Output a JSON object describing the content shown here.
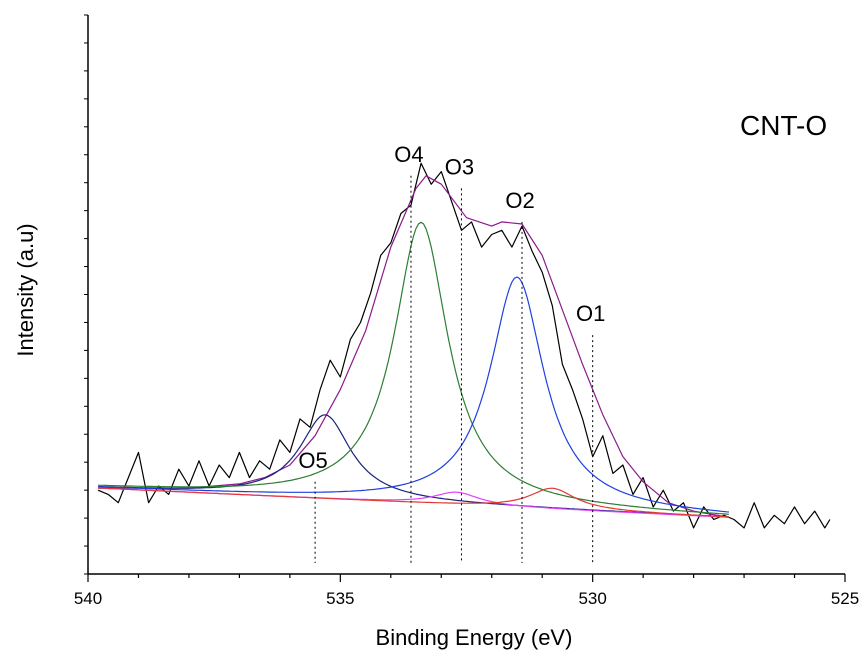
{
  "chart_data": {
    "type": "line",
    "title": "",
    "sample_label": "CNT-O",
    "xlabel": "Binding Energy (eV)",
    "ylabel": "Intensity (a.u)",
    "xlim": [
      540,
      525
    ],
    "x_reversed": true,
    "ylim": [
      0,
      100
    ],
    "y_tick_labels_shown": false,
    "grid": false,
    "legend": "none",
    "x_ticks": [
      540,
      535,
      530,
      525
    ],
    "x_tick_labels": [
      "540",
      "535",
      "530",
      "525"
    ],
    "peak_markers": [
      {
        "name": "O1",
        "x": 530.0,
        "top": 57
      },
      {
        "name": "O2",
        "x": 531.4,
        "top": 84
      },
      {
        "name": "O3",
        "x": 532.6,
        "top": 92
      },
      {
        "name": "O4",
        "x": 533.6,
        "top": 95
      },
      {
        "name": "O5",
        "x": 535.5,
        "top": 22
      }
    ],
    "baseline_start": [
      539.8,
      20.5
    ],
    "baseline_end": [
      527.3,
      13.5
    ],
    "series": [
      {
        "key": "raw",
        "color": "#000000",
        "points": [
          [
            539.8,
            20
          ],
          [
            539.6,
            19
          ],
          [
            539.4,
            17
          ],
          [
            539.3,
            20
          ],
          [
            539.0,
            29
          ],
          [
            538.8,
            17
          ],
          [
            538.6,
            21
          ],
          [
            538.4,
            19
          ],
          [
            538.2,
            25
          ],
          [
            538.0,
            21
          ],
          [
            537.8,
            27
          ],
          [
            537.6,
            21
          ],
          [
            537.4,
            26
          ],
          [
            537.2,
            23
          ],
          [
            537.0,
            29
          ],
          [
            536.8,
            23
          ],
          [
            536.6,
            27
          ],
          [
            536.4,
            25
          ],
          [
            536.2,
            32
          ],
          [
            536.0,
            29
          ],
          [
            535.8,
            37
          ],
          [
            535.6,
            35
          ],
          [
            535.4,
            44
          ],
          [
            535.2,
            51
          ],
          [
            535.0,
            47
          ],
          [
            534.8,
            56
          ],
          [
            534.6,
            60
          ],
          [
            534.4,
            67
          ],
          [
            534.2,
            76
          ],
          [
            534.0,
            79
          ],
          [
            533.8,
            86
          ],
          [
            533.6,
            88
          ],
          [
            533.4,
            98
          ],
          [
            533.2,
            93
          ],
          [
            533.0,
            96
          ],
          [
            532.8,
            89
          ],
          [
            532.6,
            82
          ],
          [
            532.4,
            84
          ],
          [
            532.2,
            78
          ],
          [
            532.0,
            81
          ],
          [
            531.8,
            82
          ],
          [
            531.6,
            78
          ],
          [
            531.4,
            83
          ],
          [
            531.2,
            77
          ],
          [
            531.0,
            72
          ],
          [
            530.8,
            64
          ],
          [
            530.6,
            50
          ],
          [
            530.4,
            44
          ],
          [
            530.2,
            37
          ],
          [
            530.0,
            28
          ],
          [
            529.8,
            33
          ],
          [
            529.6,
            24
          ],
          [
            529.4,
            26
          ],
          [
            529.2,
            19
          ],
          [
            529.0,
            23
          ],
          [
            528.8,
            16
          ],
          [
            528.6,
            20
          ],
          [
            528.4,
            15
          ],
          [
            528.2,
            17
          ],
          [
            528.0,
            11
          ],
          [
            527.8,
            16
          ],
          [
            527.6,
            13
          ],
          [
            527.4,
            14
          ],
          [
            527.2,
            13
          ],
          [
            527.0,
            11
          ],
          [
            526.8,
            17
          ],
          [
            526.6,
            11
          ],
          [
            526.4,
            14
          ],
          [
            526.2,
            12
          ],
          [
            526.0,
            16
          ],
          [
            525.8,
            12
          ],
          [
            525.6,
            15
          ],
          [
            525.4,
            11
          ],
          [
            525.3,
            13
          ]
        ]
      },
      {
        "key": "envelope",
        "color": "#8b1a8b",
        "points": [
          [
            539.8,
            20.5
          ],
          [
            538,
            20.5
          ],
          [
            537,
            21.5
          ],
          [
            536.5,
            23
          ],
          [
            536,
            26
          ],
          [
            535.5,
            33
          ],
          [
            535,
            44
          ],
          [
            534.5,
            58
          ],
          [
            534,
            78
          ],
          [
            533.5,
            92
          ],
          [
            533.3,
            95
          ],
          [
            533.0,
            93
          ],
          [
            532.5,
            85
          ],
          [
            532,
            83
          ],
          [
            531.8,
            84
          ],
          [
            531.4,
            83.5
          ],
          [
            531,
            76
          ],
          [
            530.6,
            63
          ],
          [
            530.2,
            50
          ],
          [
            529.8,
            38
          ],
          [
            529.4,
            28
          ],
          [
            529,
            22
          ],
          [
            528.5,
            17
          ],
          [
            528,
            15
          ],
          [
            527.3,
            13.5
          ]
        ]
      },
      {
        "key": "O5-fit",
        "color": "#1a237e",
        "center": 535.3,
        "width": 0.9,
        "height": 20
      },
      {
        "key": "O4-fit",
        "color": "#2e7d32",
        "center": 533.4,
        "width": 0.95,
        "height": 67
      },
      {
        "key": "O3-fit",
        "color": "#e040fb",
        "center": 532.7,
        "width": 0.8,
        "height": 3
      },
      {
        "key": "O2-fit",
        "color": "#1e40e0",
        "center": 531.5,
        "width": 0.95,
        "height": 55
      },
      {
        "key": "O1-fit",
        "color": "#e53935",
        "center": 530.8,
        "width": 0.8,
        "height": 5
      }
    ]
  }
}
